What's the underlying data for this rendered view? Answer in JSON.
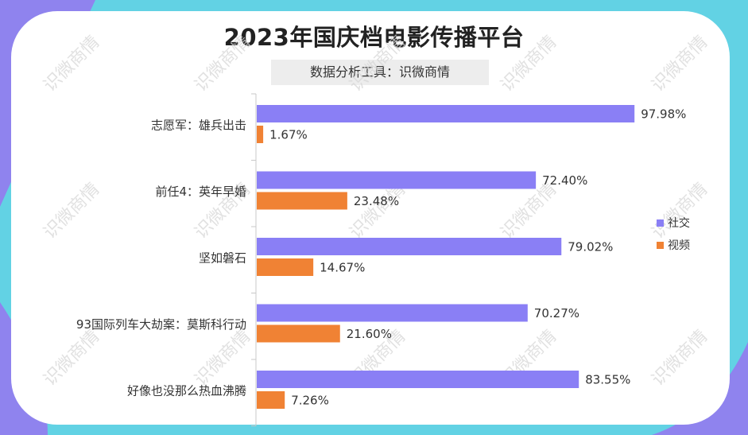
{
  "title": "2023年国庆档电影传播平台",
  "subtitle": "数据分析工具：识微商情",
  "watermark": "识微商情",
  "colors": {
    "social": "#8a7ff5",
    "video": "#f08234",
    "frame": "#62d2e4",
    "accent": "#8f83ee"
  },
  "chart_data": {
    "type": "bar",
    "orientation": "horizontal",
    "categories": [
      "志愿军：雄兵出击",
      "前任4：英年早婚",
      "坚如磐石",
      "93国际列车大劫案：莫斯科行动",
      "好像也没那么热血沸腾"
    ],
    "series": [
      {
        "name": "社交",
        "values": [
          97.98,
          72.4,
          79.02,
          70.27,
          83.55
        ],
        "labels": [
          "97.98%",
          "72.40%",
          "79.02%",
          "70.27%",
          "83.55%"
        ]
      },
      {
        "name": "视频",
        "values": [
          1.67,
          23.48,
          14.67,
          21.6,
          7.26
        ],
        "labels": [
          "1.67%",
          "23.48%",
          "14.67%",
          "21.60%",
          "7.26%"
        ]
      }
    ],
    "xlim": [
      0,
      100
    ],
    "grid": false,
    "legend_position": "right"
  }
}
